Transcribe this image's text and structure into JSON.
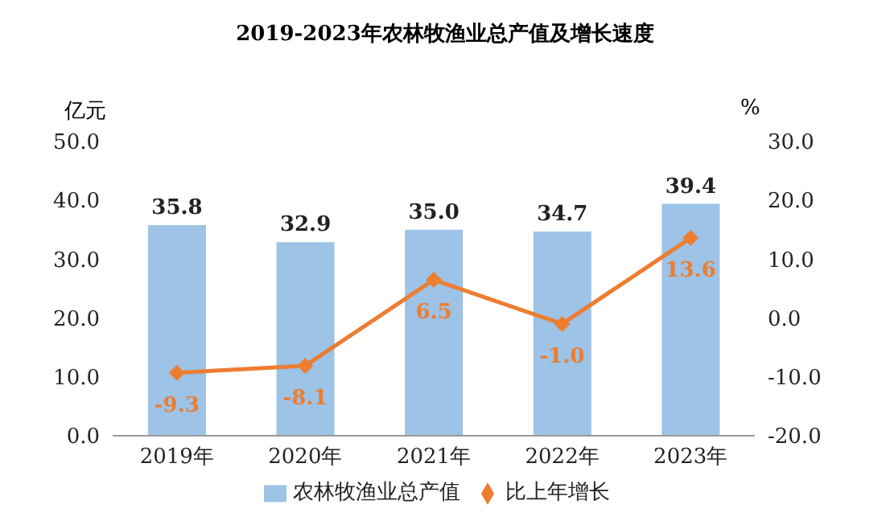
{
  "chart_data": {
    "type": "bar",
    "title": "2019-2023年农林牧渔业总产值及增长速度",
    "ylabel": "亿元",
    "y2label": "%",
    "categories": [
      "2019年",
      "2020年",
      "2021年",
      "2022年",
      "2023年"
    ],
    "series": [
      {
        "name": "农林牧渔业总产值",
        "color": "#9dc3e6",
        "values": [
          35.8,
          32.9,
          35.0,
          34.7,
          39.4
        ],
        "value_labels": [
          "35.8",
          "32.9",
          "35.0",
          "34.7",
          "39.4"
        ]
      },
      {
        "name": "比上年增长",
        "type": "line",
        "axis": "y2",
        "color": "#ed7d31",
        "marker": "diamond",
        "values": [
          -9.3,
          -8.1,
          6.5,
          -1.0,
          13.6
        ],
        "value_labels": [
          "-9.3",
          "-8.1",
          "6.5",
          "-1.0",
          "13.6"
        ]
      }
    ],
    "ylim": [
      0,
      50
    ],
    "yticks": [
      {
        "value": 0,
        "label": "0.0"
      },
      {
        "value": 10,
        "label": "10.0"
      },
      {
        "value": 20,
        "label": "20.0"
      },
      {
        "value": 30,
        "label": "30.0"
      },
      {
        "value": 40,
        "label": "40.0"
      },
      {
        "value": 50,
        "label": "50.0"
      }
    ],
    "y2lim": [
      -20,
      30
    ],
    "y2ticks": [
      {
        "value": -20,
        "label": "-20.0"
      },
      {
        "value": -10,
        "label": "-10.0"
      },
      {
        "value": 0,
        "label": "0.0"
      },
      {
        "value": 10,
        "label": "10.0"
      },
      {
        "value": 20,
        "label": "20.0"
      },
      {
        "value": 30,
        "label": "30.0"
      }
    ],
    "legend": "bottom",
    "grid": false
  }
}
